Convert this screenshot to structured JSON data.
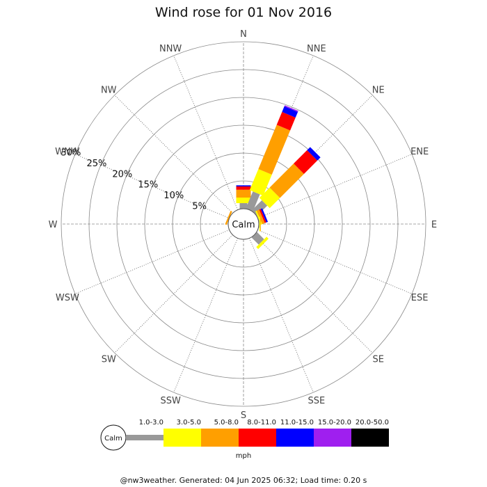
{
  "chart_data": {
    "type": "wind-rose",
    "title": "Wind rose for 01 Nov 2016",
    "directions": [
      "N",
      "NNE",
      "NE",
      "ENE",
      "E",
      "ESE",
      "SE",
      "SSE",
      "S",
      "SSW",
      "SW",
      "WSW",
      "W",
      "WNW",
      "NW",
      "NNW"
    ],
    "rings": [
      5,
      10,
      15,
      20,
      25,
      30
    ],
    "ring_labels": [
      "5%",
      "10%",
      "15%",
      "20%",
      "25%",
      "30%"
    ],
    "rmax": 30,
    "calm_label": "Calm",
    "unit": "mph",
    "speed_bins": [
      {
        "label": "1.0-3.0",
        "color": "#999999"
      },
      {
        "label": "3.0-5.0",
        "color": "#ffff00"
      },
      {
        "label": "5.0-8.0",
        "color": "#ff9f00"
      },
      {
        "label": "8.0-11.0",
        "color": "#ff0000"
      },
      {
        "label": "11.0-15.0",
        "color": "#0000ff"
      },
      {
        "label": "15.0-20.0",
        "color": "#9f1fef"
      },
      {
        "label": "20.0-50.0",
        "color": "#000000"
      }
    ],
    "frequencies": [
      {
        "dir": "N",
        "values": [
          1.0,
          1.0,
          1.4,
          0.6,
          0.2,
          0,
          0
        ]
      },
      {
        "dir": "NNE",
        "values": [
          3.3,
          4.1,
          8.6,
          2.5,
          1.1,
          0.2,
          0
        ]
      },
      {
        "dir": "NE",
        "values": [
          2.6,
          2.6,
          6.1,
          3.4,
          0.8,
          0,
          0
        ]
      },
      {
        "dir": "ENE",
        "values": [
          0.1,
          0.25,
          0.5,
          0.3,
          0.3,
          0,
          0
        ]
      },
      {
        "dir": "E",
        "values": [
          0.1,
          0.15,
          0.1,
          0,
          0,
          0,
          0
        ]
      },
      {
        "dir": "ESE",
        "values": [
          0.05,
          0,
          0,
          0,
          0,
          0,
          0
        ]
      },
      {
        "dir": "SE",
        "values": [
          1.8,
          0.5,
          0,
          0,
          0,
          0,
          0
        ]
      },
      {
        "dir": "SSE",
        "values": [
          0,
          0,
          0,
          0,
          0,
          0,
          0
        ]
      },
      {
        "dir": "S",
        "values": [
          0,
          0,
          0,
          0,
          0,
          0,
          0
        ]
      },
      {
        "dir": "SSW",
        "values": [
          0,
          0,
          0,
          0,
          0,
          0,
          0
        ]
      },
      {
        "dir": "SW",
        "values": [
          0,
          0,
          0,
          0,
          0,
          0,
          0
        ]
      },
      {
        "dir": "WSW",
        "values": [
          0,
          0,
          0,
          0,
          0,
          0,
          0
        ]
      },
      {
        "dir": "W",
        "values": [
          0,
          0,
          0,
          0,
          0,
          0,
          0
        ]
      },
      {
        "dir": "WNW",
        "values": [
          0,
          0,
          0.3,
          0,
          0,
          0,
          0
        ]
      },
      {
        "dir": "NW",
        "values": [
          0,
          0,
          0,
          0,
          0,
          0,
          0
        ]
      },
      {
        "dir": "NNW",
        "values": [
          0,
          0,
          0,
          0,
          0,
          0,
          0
        ]
      }
    ]
  },
  "footer": "@nw3weather. Generated: 04 Jun 2025 06:32; Load time: 0.20 s"
}
